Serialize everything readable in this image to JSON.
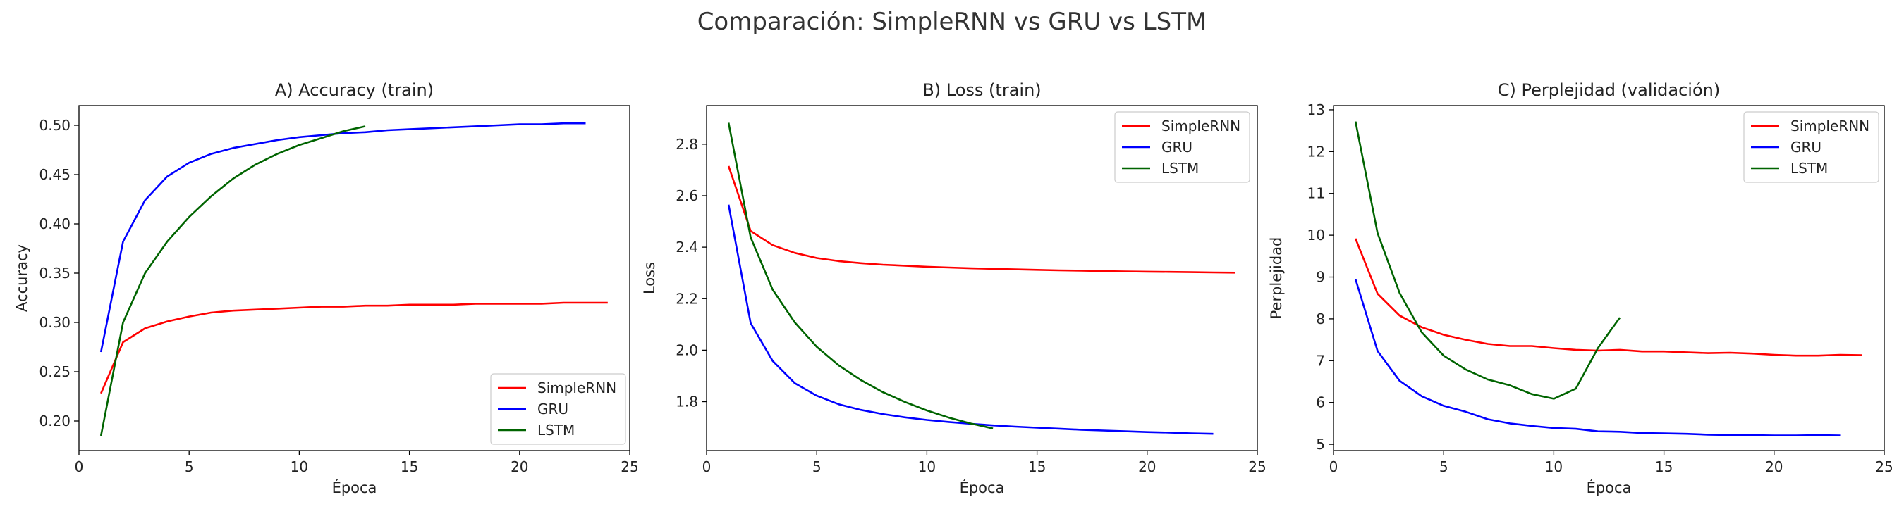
{
  "figure": {
    "title": "Comparación: SimpleRNN vs GRU vs LSTM"
  },
  "colors": {
    "SimpleRNN": "#ff0000",
    "GRU": "#0000ff",
    "LSTM": "#006400"
  },
  "chart_data": [
    {
      "type": "line",
      "title": "A) Accuracy (train)",
      "xlabel": "Época",
      "ylabel": "Accuracy",
      "xlim": [
        0,
        25
      ],
      "ylim": [
        0.17,
        0.52
      ],
      "xticks": [
        0,
        5,
        10,
        15,
        20,
        25
      ],
      "yticks": [
        0.2,
        0.25,
        0.3,
        0.35,
        0.4,
        0.45,
        0.5
      ],
      "ytick_labels": [
        "0.20",
        "0.25",
        "0.30",
        "0.35",
        "0.40",
        "0.45",
        "0.50"
      ],
      "grid": false,
      "legend": "lower-right",
      "series": [
        {
          "name": "SimpleRNN",
          "x": [
            1,
            2,
            3,
            4,
            5,
            6,
            7,
            8,
            9,
            10,
            11,
            12,
            13,
            14,
            15,
            16,
            17,
            18,
            19,
            20,
            21,
            22,
            23,
            24
          ],
          "y": [
            0.228,
            0.28,
            0.294,
            0.301,
            0.306,
            0.31,
            0.312,
            0.313,
            0.314,
            0.315,
            0.316,
            0.316,
            0.317,
            0.317,
            0.318,
            0.318,
            0.318,
            0.319,
            0.319,
            0.319,
            0.319,
            0.32,
            0.32,
            0.32
          ]
        },
        {
          "name": "GRU",
          "x": [
            1,
            2,
            3,
            4,
            5,
            6,
            7,
            8,
            9,
            10,
            11,
            12,
            13,
            14,
            15,
            16,
            17,
            18,
            19,
            20,
            21,
            22,
            23
          ],
          "y": [
            0.27,
            0.382,
            0.424,
            0.448,
            0.462,
            0.471,
            0.477,
            0.481,
            0.485,
            0.488,
            0.49,
            0.492,
            0.493,
            0.495,
            0.496,
            0.497,
            0.498,
            0.499,
            0.5,
            0.501,
            0.501,
            0.502,
            0.502
          ]
        },
        {
          "name": "LSTM",
          "x": [
            1,
            2,
            3,
            4,
            5,
            6,
            7,
            8,
            9,
            10,
            11,
            12,
            13
          ],
          "y": [
            0.185,
            0.3,
            0.35,
            0.382,
            0.407,
            0.428,
            0.446,
            0.46,
            0.471,
            0.48,
            0.487,
            0.494,
            0.499
          ]
        }
      ]
    },
    {
      "type": "line",
      "title": "B) Loss (train)",
      "xlabel": "Época",
      "ylabel": "Loss",
      "xlim": [
        0,
        25
      ],
      "ylim": [
        1.61,
        2.95
      ],
      "xticks": [
        0,
        5,
        10,
        15,
        20,
        25
      ],
      "yticks": [
        1.8,
        2.0,
        2.2,
        2.4,
        2.6,
        2.8
      ],
      "ytick_labels": [
        "1.8",
        "2.0",
        "2.2",
        "2.4",
        "2.6",
        "2.8"
      ],
      "grid": false,
      "legend": "upper-right",
      "series": [
        {
          "name": "SimpleRNN",
          "x": [
            1,
            2,
            3,
            4,
            5,
            6,
            7,
            8,
            9,
            10,
            11,
            12,
            13,
            14,
            15,
            16,
            17,
            18,
            19,
            20,
            21,
            22,
            23,
            24
          ],
          "y": [
            2.715,
            2.463,
            2.408,
            2.378,
            2.358,
            2.346,
            2.338,
            2.332,
            2.328,
            2.324,
            2.321,
            2.318,
            2.316,
            2.314,
            2.312,
            2.31,
            2.309,
            2.307,
            2.306,
            2.305,
            2.304,
            2.303,
            2.302,
            2.301
          ]
        },
        {
          "name": "GRU",
          "x": [
            1,
            2,
            3,
            4,
            5,
            6,
            7,
            8,
            9,
            10,
            11,
            12,
            13,
            14,
            15,
            16,
            17,
            18,
            19,
            20,
            21,
            22,
            23
          ],
          "y": [
            2.565,
            2.105,
            1.958,
            1.872,
            1.823,
            1.79,
            1.768,
            1.752,
            1.739,
            1.729,
            1.721,
            1.714,
            1.708,
            1.703,
            1.699,
            1.695,
            1.691,
            1.688,
            1.685,
            1.682,
            1.68,
            1.677,
            1.675
          ]
        },
        {
          "name": "LSTM",
          "x": [
            1,
            2,
            3,
            4,
            5,
            6,
            7,
            8,
            9,
            10,
            11,
            12,
            13
          ],
          "y": [
            2.883,
            2.438,
            2.235,
            2.108,
            2.013,
            1.941,
            1.884,
            1.837,
            1.799,
            1.766,
            1.738,
            1.715,
            1.696
          ]
        }
      ]
    },
    {
      "type": "line",
      "title": "C) Perplejidad (validación)",
      "xlabel": "Época",
      "ylabel": "Perplejidad",
      "xlim": [
        0,
        25
      ],
      "ylim": [
        4.85,
        13.1
      ],
      "xticks": [
        0,
        5,
        10,
        15,
        20,
        25
      ],
      "yticks": [
        5,
        6,
        7,
        8,
        9,
        10,
        11,
        12,
        13
      ],
      "ytick_labels": [
        "5",
        "6",
        "7",
        "8",
        "9",
        "10",
        "11",
        "12",
        "13"
      ],
      "grid": false,
      "legend": "upper-right",
      "series": [
        {
          "name": "SimpleRNN",
          "x": [
            1,
            2,
            3,
            4,
            5,
            6,
            7,
            8,
            9,
            10,
            11,
            12,
            13,
            14,
            15,
            16,
            17,
            18,
            19,
            20,
            21,
            22,
            23,
            24
          ],
          "y": [
            9.92,
            8.6,
            8.08,
            7.8,
            7.62,
            7.5,
            7.4,
            7.35,
            7.35,
            7.3,
            7.26,
            7.24,
            7.26,
            7.22,
            7.22,
            7.2,
            7.18,
            7.19,
            7.17,
            7.14,
            7.12,
            7.12,
            7.14,
            7.13
          ]
        },
        {
          "name": "GRU",
          "x": [
            1,
            2,
            3,
            4,
            5,
            6,
            7,
            8,
            9,
            10,
            11,
            12,
            13,
            14,
            15,
            16,
            17,
            18,
            19,
            20,
            21,
            22,
            23
          ],
          "y": [
            8.95,
            7.23,
            6.52,
            6.15,
            5.92,
            5.78,
            5.6,
            5.5,
            5.44,
            5.39,
            5.37,
            5.31,
            5.3,
            5.27,
            5.26,
            5.25,
            5.23,
            5.22,
            5.22,
            5.21,
            5.21,
            5.22,
            5.21
          ]
        },
        {
          "name": "LSTM",
          "x": [
            1,
            2,
            3,
            4,
            5,
            6,
            7,
            8,
            9,
            10,
            11,
            12,
            13
          ],
          "y": [
            12.72,
            10.05,
            8.62,
            7.68,
            7.12,
            6.79,
            6.55,
            6.41,
            6.2,
            6.09,
            6.33,
            7.3,
            8.03
          ]
        }
      ]
    }
  ]
}
